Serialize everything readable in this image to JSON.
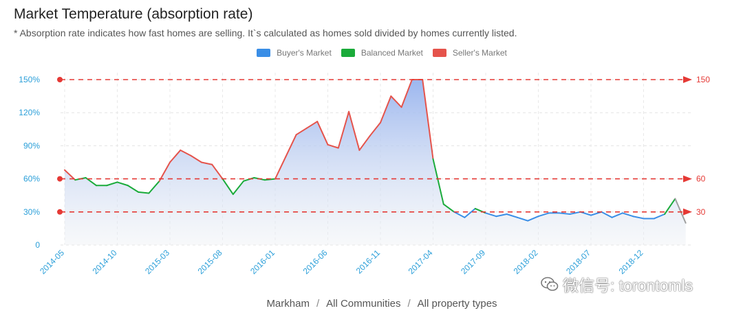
{
  "title": "Market Temperature (absorption rate)",
  "subtitle": "* Absorption rate indicates how fast homes are selling. It`s calculated as homes sold divided by homes currently listed.",
  "legend": [
    {
      "label": "Buyer's Market",
      "color": "#3a8ee6"
    },
    {
      "label": "Balanced Market",
      "color": "#1aab3a"
    },
    {
      "label": "Seller's Market",
      "color": "#e5534b"
    }
  ],
  "footer": {
    "city": "Markham",
    "community": "All Communities",
    "property": "All property types",
    "separator": "/"
  },
  "watermark": {
    "text": "微信号: torontomls",
    "icon": "wechat-icon"
  },
  "chart_data": {
    "type": "area",
    "x_tick_labels": [
      "2014-05",
      "2014-10",
      "2015-03",
      "2015-08",
      "2016-01",
      "2016-06",
      "2016-11",
      "2017-04",
      "2017-09",
      "2018-02",
      "2018-07",
      "2018-12"
    ],
    "y_tick_labels": [
      "0",
      "30%",
      "60%",
      "90%",
      "120%",
      "150%"
    ],
    "ylim": [
      0,
      150
    ],
    "reference_lines": [
      {
        "value": 150,
        "label": "150"
      },
      {
        "value": 60,
        "label": "60"
      },
      {
        "value": 30,
        "label": "30"
      }
    ],
    "thresholds": {
      "buyer_below": 30,
      "seller_above": 60
    },
    "colors": {
      "buyer": "#3a8ee6",
      "balanced": "#1aab3a",
      "seller": "#e5534b",
      "last": "#9e9e9e",
      "reference": "#e53935",
      "tick": "#2b9fd9"
    },
    "series": [
      {
        "x": [
          "2014-05",
          "2014-06",
          "2014-07",
          "2014-08",
          "2014-09",
          "2014-10",
          "2014-11",
          "2014-12",
          "2015-01",
          "2015-02",
          "2015-03",
          "2015-04",
          "2015-05",
          "2015-06",
          "2015-07",
          "2015-08",
          "2015-09",
          "2015-10",
          "2015-11",
          "2015-12",
          "2016-01",
          "2016-02",
          "2016-03",
          "2016-04",
          "2016-05",
          "2016-06",
          "2016-07",
          "2016-08",
          "2016-09",
          "2016-10",
          "2016-11",
          "2016-12",
          "2017-01",
          "2017-02",
          "2017-03",
          "2017-04",
          "2017-05",
          "2017-06",
          "2017-07",
          "2017-08",
          "2017-09",
          "2017-10",
          "2017-11",
          "2017-12",
          "2018-01",
          "2018-02",
          "2018-03",
          "2018-04",
          "2018-05",
          "2018-06",
          "2018-07",
          "2018-08",
          "2018-09",
          "2018-10",
          "2018-11",
          "2018-12",
          "2019-01",
          "2019-02",
          "2019-03",
          "2019-04"
        ],
        "values": [
          68,
          59,
          61,
          54,
          54,
          57,
          54,
          48,
          47,
          58,
          75,
          86,
          81,
          75,
          73,
          60,
          46,
          58,
          61,
          59,
          60,
          80,
          100,
          106,
          112,
          91,
          88,
          121,
          86,
          99,
          111,
          135,
          125,
          150,
          150,
          78,
          37,
          30,
          25,
          33,
          29,
          26,
          28,
          25,
          22,
          26,
          29,
          29,
          28,
          30,
          27,
          30,
          25,
          29,
          26,
          24,
          24,
          28,
          42,
          20
        ]
      }
    ]
  }
}
